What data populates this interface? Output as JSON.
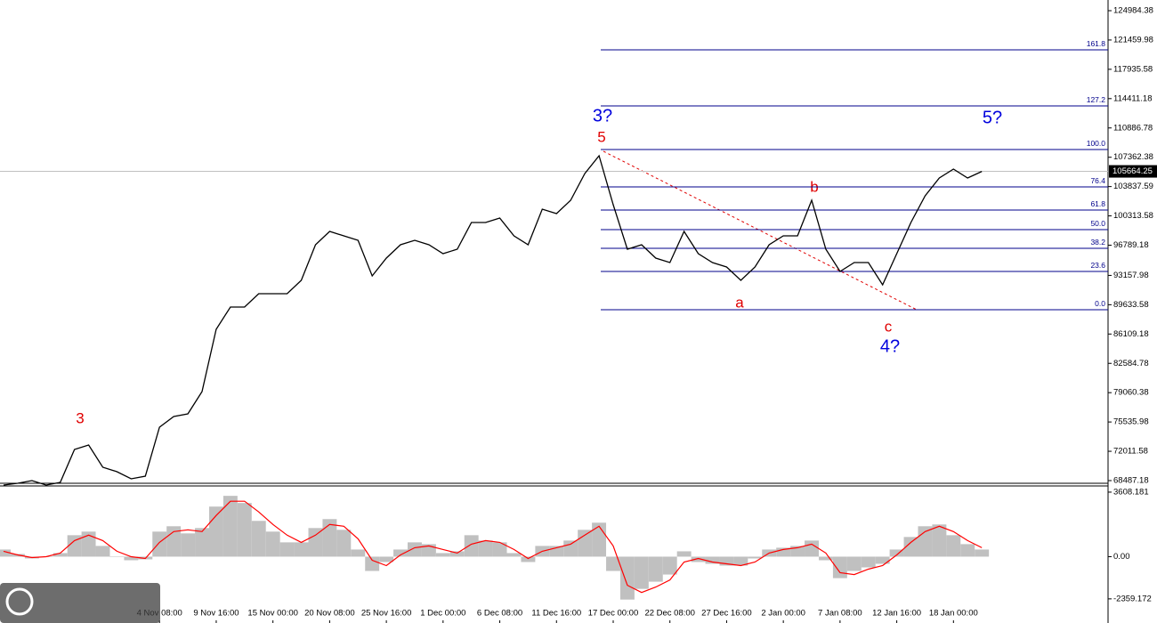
{
  "chart_data": [
    {
      "type": "line",
      "color": "#000000",
      "categories": [
        null,
        null,
        null,
        null,
        null,
        null,
        null,
        null,
        null,
        null,
        null,
        "4 Nov 08:00",
        null,
        null,
        null,
        "9 Nov 16:00",
        null,
        null,
        null,
        "15 Nov 00:00",
        null,
        null,
        null,
        "20 Nov 08:00",
        null,
        null,
        null,
        "25 Nov 16:00",
        null,
        null,
        null,
        "1 Dec 00:00",
        null,
        null,
        null,
        "6 Dec 08:00",
        null,
        null,
        null,
        "11 Dec 16:00",
        null,
        null,
        null,
        "17 Dec 00:00",
        null,
        null,
        null,
        "22 Dec 08:00",
        null,
        null,
        null,
        "27 Dec 16:00",
        null,
        null,
        null,
        "2 Jan 00:00",
        null,
        null,
        null,
        "7 Jan 08:00",
        null,
        null,
        null,
        "12 Jan 16:00",
        null,
        null,
        null,
        "18 Jan 00:00",
        null,
        null
      ],
      "values": [
        67953,
        68167,
        68488,
        67953,
        68274,
        72233,
        72768,
        70093,
        69558,
        68702,
        69023,
        74908,
        76192,
        76513,
        79188,
        86678,
        89353,
        89353,
        90958,
        90958,
        90958,
        92563,
        96843,
        98448,
        97913,
        97378,
        93098,
        95238,
        96843,
        97378,
        96843,
        95773,
        96308,
        99518,
        99518,
        100053,
        97913,
        96843,
        101123,
        100588,
        102193,
        105403,
        107543,
        101658,
        96308,
        96843,
        95238,
        94703,
        98448,
        95773,
        94703,
        94168,
        92563,
        94168,
        96843,
        97913,
        97913,
        102193,
        96308,
        93633,
        94703,
        94703,
        92028,
        95773,
        99518,
        102728,
        104868,
        105938,
        104868,
        105664.25
      ],
      "ylim": [
        68166,
        126268
      ],
      "yticks": [
        124984.38,
        121459.98,
        117935.58,
        114411.18,
        110886.78,
        107362.38,
        103837.59,
        100313.58,
        96789.18,
        93157.98,
        89633.58,
        86109.18,
        82584.78,
        79060.38,
        75535.98,
        72011.58,
        68487.18
      ],
      "last_price": 105664.25,
      "fib_color": "#00008b",
      "fib_levels": [
        {
          "label": "161.8",
          "value": 120276
        },
        {
          "label": "127.2",
          "value": 113535
        },
        {
          "label": "100.0",
          "value": 108292
        },
        {
          "label": "76.4",
          "value": 103798
        },
        {
          "label": "61.8",
          "value": 101016
        },
        {
          "label": "50.0",
          "value": 98662
        },
        {
          "label": "38.2",
          "value": 96415
        },
        {
          "label": "23.6",
          "value": 93633
        },
        {
          "label": "0.0",
          "value": 89032
        }
      ],
      "annotations": [
        {
          "text": "3",
          "color": "#e00000"
        },
        {
          "text": "5",
          "color": "#e00000"
        },
        {
          "text": "3?",
          "color": "#0000dd"
        },
        {
          "text": "5?",
          "color": "#0000dd"
        },
        {
          "text": "b",
          "color": "#e00000"
        },
        {
          "text": "a",
          "color": "#e00000"
        },
        {
          "text": "c",
          "color": "#e00000"
        },
        {
          "text": "4?",
          "color": "#0000dd"
        }
      ]
    },
    {
      "type": "macd",
      "series": [
        {
          "color": "#c0c0c0",
          "values": [
            400,
            150,
            -100,
            0,
            200,
            1200,
            1400,
            600,
            0,
            -200,
            -150,
            1400,
            1700,
            1300,
            1600,
            2800,
            3400,
            3000,
            2000,
            1400,
            800,
            800,
            1600,
            2100,
            1500,
            400,
            -800,
            -300,
            400,
            800,
            700,
            200,
            300,
            1200,
            900,
            800,
            200,
            -300,
            600,
            600,
            900,
            1500,
            1900,
            -800,
            -2400,
            -1800,
            -1400,
            -1000,
            300,
            -300,
            -400,
            -500,
            -500,
            -100,
            400,
            500,
            600,
            900,
            -200,
            -1200,
            -800,
            -600,
            -400,
            400,
            1100,
            1700,
            1800,
            1200,
            700,
            400
          ]
        },
        {
          "color": "#ff0000",
          "values": [
            300,
            100,
            -50,
            0,
            200,
            900,
            1200,
            900,
            300,
            0,
            -100,
            800,
            1400,
            1500,
            1400,
            2300,
            3100,
            3100,
            2500,
            1800,
            1200,
            800,
            1200,
            1800,
            1700,
            1000,
            -200,
            -500,
            100,
            500,
            600,
            400,
            200,
            700,
            900,
            800,
            400,
            -100,
            300,
            500,
            700,
            1200,
            1700,
            600,
            -1600,
            -2000,
            -1700,
            -1300,
            -300,
            -100,
            -300,
            -400,
            -500,
            -300,
            200,
            400,
            500,
            700,
            200,
            -900,
            -1000,
            -700,
            -500,
            100,
            800,
            1400,
            1700,
            1400,
            900,
            500
          ]
        }
      ],
      "ylim": [
        -3709,
        3954
      ],
      "yticks": [
        3608.181,
        {
          "value": 0,
          "label": "0.00"
        },
        -2359.172
      ]
    }
  ]
}
